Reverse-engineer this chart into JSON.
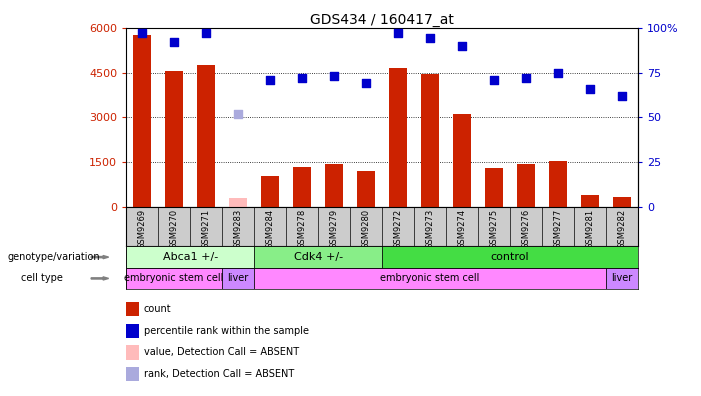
{
  "title": "GDS434 / 160417_at",
  "samples": [
    "GSM9269",
    "GSM9270",
    "GSM9271",
    "GSM9283",
    "GSM9284",
    "GSM9278",
    "GSM9279",
    "GSM9280",
    "GSM9272",
    "GSM9273",
    "GSM9274",
    "GSM9275",
    "GSM9276",
    "GSM9277",
    "GSM9281",
    "GSM9282"
  ],
  "counts": [
    5750,
    4550,
    4750,
    300,
    1050,
    1350,
    1450,
    1200,
    4650,
    4450,
    3100,
    1300,
    1450,
    1550,
    400,
    350
  ],
  "counts_absent": [
    false,
    false,
    false,
    true,
    false,
    false,
    false,
    false,
    false,
    false,
    false,
    false,
    false,
    false,
    false,
    false
  ],
  "percentile_ranks": [
    97,
    92,
    97,
    null,
    71,
    72,
    73,
    69,
    97,
    94,
    90,
    71,
    72,
    75,
    66,
    62
  ],
  "rank_absent_value": 52,
  "ylim_left": [
    0,
    6000
  ],
  "ylim_right": [
    0,
    100
  ],
  "yticks_left": [
    0,
    1500,
    3000,
    4500,
    6000
  ],
  "ytick_labels_left": [
    "0",
    "1500",
    "3000",
    "4500",
    "6000"
  ],
  "yticks_right": [
    0,
    25,
    50,
    75,
    100
  ],
  "ytick_labels_right": [
    "0",
    "25",
    "50",
    "75",
    "100%"
  ],
  "bar_color_normal": "#cc2200",
  "bar_color_absent": "#ffbbbb",
  "dot_color_normal": "#0000cc",
  "dot_color_absent": "#aaaadd",
  "plot_bg": "#ffffff",
  "xtick_bg": "#cccccc",
  "genotype_groups": [
    {
      "label": "Abca1 +/-",
      "start": 0,
      "end": 3,
      "color": "#ccffcc"
    },
    {
      "label": "Cdk4 +/-",
      "start": 4,
      "end": 7,
      "color": "#88ee88"
    },
    {
      "label": "control",
      "start": 8,
      "end": 15,
      "color": "#44dd44"
    }
  ],
  "cell_type_groups": [
    {
      "label": "embryonic stem cell",
      "start": 0,
      "end": 2,
      "color": "#ff88ff"
    },
    {
      "label": "liver",
      "start": 3,
      "end": 3,
      "color": "#cc88ff"
    },
    {
      "label": "embryonic stem cell",
      "start": 4,
      "end": 14,
      "color": "#ff88ff"
    },
    {
      "label": "liver",
      "start": 15,
      "end": 15,
      "color": "#cc88ff"
    }
  ],
  "legend_items": [
    {
      "label": "count",
      "color": "#cc2200"
    },
    {
      "label": "percentile rank within the sample",
      "color": "#0000cc"
    },
    {
      "label": "value, Detection Call = ABSENT",
      "color": "#ffbbbb"
    },
    {
      "label": "rank, Detection Call = ABSENT",
      "color": "#aaaadd"
    }
  ],
  "genotype_label": "genotype/variation",
  "cell_type_label": "cell type",
  "dot_size": 35,
  "bar_width": 0.55
}
